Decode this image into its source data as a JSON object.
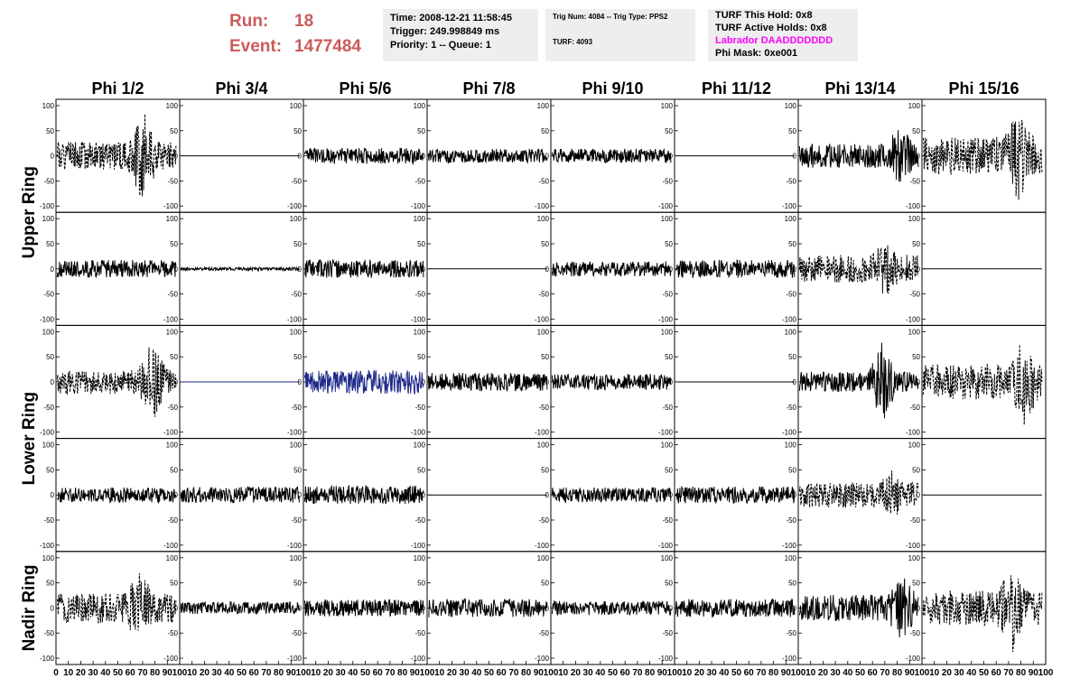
{
  "header": {
    "run_label": "Run:",
    "run_value": "18",
    "event_label": "Event:",
    "event_value": "1477484",
    "info": {
      "time": "Time: 2008-12-21 11:58:45",
      "trigger": "Trigger: 249.998849 ms",
      "priority": "Priority: 1 -- Queue: 1",
      "trig_num": "Trig Num: 4084 -- Trig Type: PPS2",
      "turf": "TURF: 4093",
      "turf_this_hold": "TURF This Hold: 0x8",
      "turf_active_holds": "TURF Active Holds: 0x8",
      "labrador": "Labrador DAADDDDDDD",
      "phi_mask": "Phi Mask: 0xe001"
    }
  },
  "colors": {
    "title_red": "#cc5a5a",
    "info_bg": "#eeeeee",
    "labrador_magenta": "#ff00ff",
    "trace_black": "#000000",
    "trace_blue": "#1f2a8a"
  },
  "chart_data": {
    "type": "line",
    "column_titles": [
      "Phi 1/2",
      "Phi 3/4",
      "Phi 5/6",
      "Phi 7/8",
      "Phi 9/10",
      "Phi 11/12",
      "Phi 13/14",
      "Phi 15/16"
    ],
    "row_titles": [
      {
        "label": "Upper Ring",
        "rows": [
          0,
          1
        ]
      },
      {
        "label": "Lower Ring",
        "rows": [
          2,
          3
        ]
      },
      {
        "label": "Nadir Ring",
        "rows": [
          4
        ]
      }
    ],
    "xlim": [
      0,
      100
    ],
    "ylim": [
      -100,
      100
    ],
    "x_tick_labels": [
      "0",
      "10",
      "20",
      "30",
      "40",
      "50",
      "60",
      "70",
      "80",
      "90",
      "100"
    ],
    "y_tick_labels": [
      "100",
      "50",
      "0",
      "-50",
      "-100"
    ],
    "panels": [
      [
        {
          "style": "dashed",
          "color": "black",
          "amp": 28,
          "spike_x": 70,
          "spike_amp": 95,
          "seed": 1
        },
        {
          "style": "flat",
          "color": "black",
          "amp": 0,
          "seed": 2
        },
        {
          "style": "solid",
          "color": "black",
          "amp": 16,
          "seed": 3
        },
        {
          "style": "solid",
          "color": "black",
          "amp": 14,
          "seed": 4
        },
        {
          "style": "solid",
          "color": "black",
          "amp": 14,
          "seed": 5
        },
        {
          "style": "flat",
          "color": "black",
          "amp": 0,
          "seed": 6
        },
        {
          "style": "solid",
          "color": "black",
          "amp": 24,
          "spike_x": 82,
          "spike_amp": 62,
          "seed": 7
        },
        {
          "style": "dashed",
          "color": "black",
          "amp": 38,
          "spike_x": 78,
          "spike_amp": 92,
          "seed": 8
        }
      ],
      [
        {
          "style": "solid",
          "color": "black",
          "amp": 18,
          "seed": 9
        },
        {
          "style": "solid",
          "color": "black",
          "amp": 3,
          "seed": 10
        },
        {
          "style": "solid",
          "color": "black",
          "amp": 18,
          "seed": 11
        },
        {
          "style": "flat",
          "color": "black",
          "amp": 0,
          "seed": 12
        },
        {
          "style": "solid",
          "color": "black",
          "amp": 15,
          "seed": 13
        },
        {
          "style": "solid",
          "color": "black",
          "amp": 18,
          "seed": 14
        },
        {
          "style": "dashed",
          "color": "black",
          "amp": 28,
          "spike_x": 70,
          "spike_amp": 55,
          "seed": 15
        },
        {
          "style": "flat",
          "color": "black",
          "amp": 0,
          "seed": 16
        }
      ],
      [
        {
          "style": "dashed",
          "color": "black",
          "amp": 25,
          "spike_x": 78,
          "spike_amp": 85,
          "seed": 17
        },
        {
          "style": "flat",
          "color": "blue",
          "amp": 0,
          "seed": 18
        },
        {
          "style": "solid",
          "color": "blue",
          "amp": 24,
          "seed": 19
        },
        {
          "style": "solid",
          "color": "black",
          "amp": 18,
          "seed": 20
        },
        {
          "style": "solid",
          "color": "black",
          "amp": 16,
          "seed": 21
        },
        {
          "style": "flat",
          "color": "black",
          "amp": 0,
          "seed": 22
        },
        {
          "style": "solid",
          "color": "black",
          "amp": 20,
          "spike_x": 68,
          "spike_amp": 85,
          "seed": 23
        },
        {
          "style": "dashed",
          "color": "black",
          "amp": 35,
          "spike_x": 82,
          "spike_amp": 90,
          "seed": 24
        }
      ],
      [
        {
          "style": "solid",
          "color": "black",
          "amp": 15,
          "seed": 25
        },
        {
          "style": "solid",
          "color": "black",
          "amp": 16,
          "seed": 26
        },
        {
          "style": "solid",
          "color": "black",
          "amp": 18,
          "seed": 27
        },
        {
          "style": "flat",
          "color": "black",
          "amp": 0,
          "seed": 28
        },
        {
          "style": "solid",
          "color": "black",
          "amp": 15,
          "seed": 29
        },
        {
          "style": "solid",
          "color": "black",
          "amp": 17,
          "seed": 30
        },
        {
          "style": "dashed",
          "color": "black",
          "amp": 25,
          "spike_x": 75,
          "spike_amp": 50,
          "seed": 31
        },
        {
          "style": "flat",
          "color": "black",
          "amp": 0,
          "seed": 32
        }
      ],
      [
        {
          "style": "dashed",
          "color": "black",
          "amp": 30,
          "spike_x": 68,
          "spike_amp": 75,
          "seed": 33
        },
        {
          "style": "solid",
          "color": "black",
          "amp": 12,
          "seed": 34
        },
        {
          "style": "solid",
          "color": "black",
          "amp": 17,
          "seed": 35
        },
        {
          "style": "solid",
          "color": "black",
          "amp": 18,
          "seed": 36
        },
        {
          "style": "solid",
          "color": "black",
          "amp": 14,
          "seed": 37
        },
        {
          "style": "solid",
          "color": "black",
          "amp": 18,
          "seed": 38
        },
        {
          "style": "solid",
          "color": "black",
          "amp": 26,
          "spike_x": 84,
          "spike_amp": 70,
          "seed": 39
        },
        {
          "style": "dashed",
          "color": "black",
          "amp": 35,
          "spike_x": 72,
          "spike_amp": 95,
          "seed": 40
        }
      ]
    ]
  }
}
